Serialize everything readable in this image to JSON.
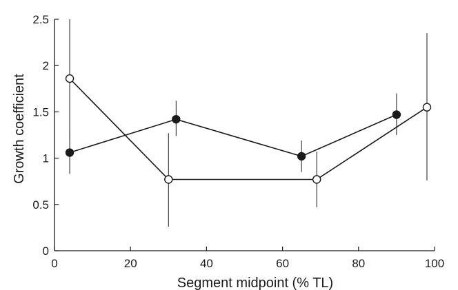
{
  "chart_data": {
    "type": "line",
    "title": "",
    "xlabel": "Segment midpoint (% TL)",
    "ylabel": "Growth coefficient",
    "xlim": [
      0,
      100
    ],
    "ylim": [
      0,
      2.5
    ],
    "x_ticks": [
      "0",
      "20",
      "40",
      "60",
      "80",
      "100"
    ],
    "y_ticks": [
      "0",
      "0.5",
      "1",
      "1.5",
      "2",
      "2.5"
    ],
    "grid": false,
    "legend": "none",
    "series": [
      {
        "marker": "filled-circle",
        "color": "#1a1a1a",
        "x": [
          4,
          32,
          65,
          90
        ],
        "y": [
          1.06,
          1.42,
          1.02,
          1.47
        ],
        "err_low": [
          0.83,
          1.24,
          0.85,
          1.25
        ],
        "err_high": [
          1.3,
          1.62,
          1.19,
          1.7
        ]
      },
      {
        "marker": "open-circle",
        "color": "#1a1a1a",
        "x": [
          4,
          30,
          69,
          98
        ],
        "y": [
          1.86,
          0.77,
          0.77,
          1.55
        ],
        "err_low": [
          1.19,
          0.26,
          0.47,
          0.76
        ],
        "err_high": [
          2.5,
          1.27,
          1.07,
          2.35
        ]
      }
    ]
  }
}
